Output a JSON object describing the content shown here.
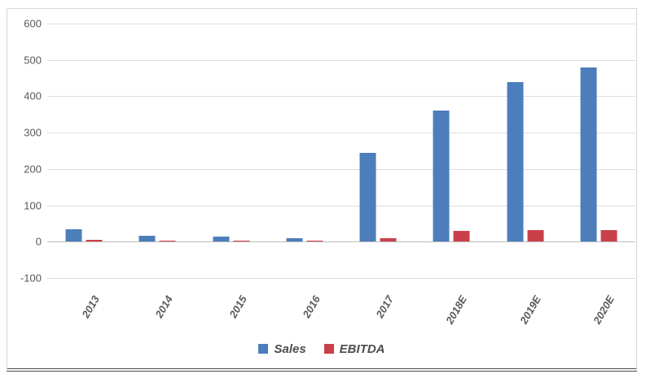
{
  "chart_data": {
    "type": "bar",
    "categories": [
      "2013",
      "2014",
      "2015",
      "2016",
      "2017",
      "2018E",
      "2019E",
      "2020E"
    ],
    "series": [
      {
        "name": "Sales",
        "color": "#4b7ebb",
        "values": [
          34,
          16,
          13,
          10,
          245,
          360,
          440,
          480
        ]
      },
      {
        "name": "EBITDA",
        "color": "#c9404b",
        "values": [
          5,
          2,
          2,
          2,
          10,
          30,
          32,
          32
        ]
      }
    ],
    "ylim": [
      -100,
      600
    ],
    "ytick_interval": 100,
    "ytick_labels": [
      "600",
      "500",
      "400",
      "300",
      "200",
      "100",
      "0",
      "-100"
    ],
    "xlabel": "",
    "ylabel": "",
    "grid": true,
    "legend_position": "bottom-center"
  },
  "colors": {
    "grid": "#dedede",
    "zero_line": "#bdbdbd",
    "axis_text": "#595959",
    "legend_text": "#4d4d4d",
    "frame_border": "#d6d6d6",
    "frame_bottom": "#4c4c4c",
    "background": "#ffffff"
  }
}
